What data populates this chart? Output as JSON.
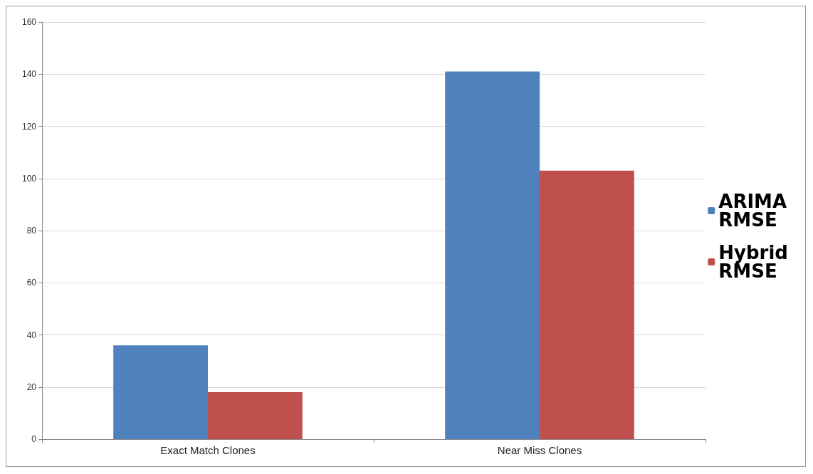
{
  "chart_data": {
    "type": "bar",
    "categories": [
      "Exact Match Clones",
      "Near Miss Clones"
    ],
    "series": [
      {
        "name": "ARIMA RMSE",
        "color": "#4f81bd",
        "values": [
          36,
          141
        ]
      },
      {
        "name": "Hybrid RMSE",
        "color": "#c0504d",
        "values": [
          18,
          103
        ]
      }
    ],
    "ylim": [
      0,
      160
    ],
    "yticks": [
      0,
      20,
      40,
      60,
      80,
      100,
      120,
      140,
      160
    ],
    "grid": "y",
    "legend": "right"
  }
}
